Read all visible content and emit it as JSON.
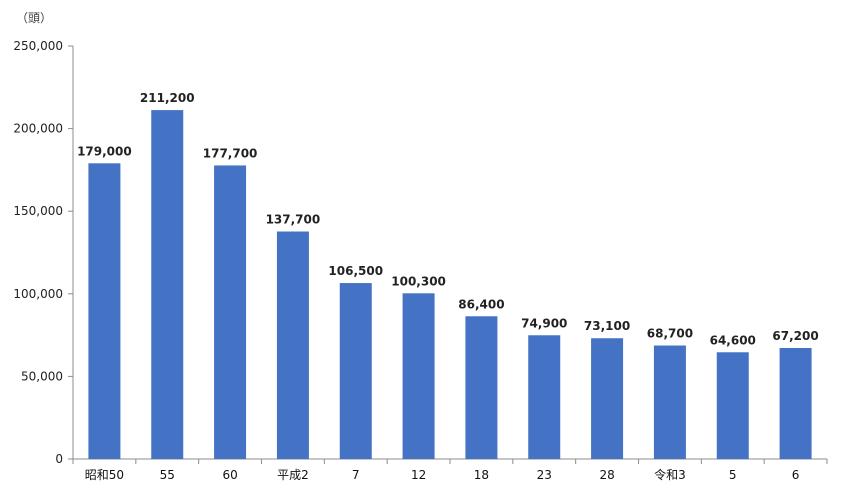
{
  "chart_data": {
    "type": "bar",
    "unit_label": "（頭）",
    "categories": [
      "昭和50",
      "55",
      "60",
      "平成2",
      "7",
      "12",
      "18",
      "23",
      "28",
      "令和3",
      "5",
      "6"
    ],
    "values": [
      179000,
      211200,
      177700,
      137700,
      106500,
      100300,
      86400,
      74900,
      73100,
      68700,
      64600,
      67200
    ],
    "data_labels": [
      "179,000",
      "211,200",
      "177,700",
      "137,700",
      "106,500",
      "100,300",
      "86,400",
      "74,900",
      "73,100",
      "68,700",
      "64,600",
      "67,200"
    ],
    "yticks": [
      0,
      50000,
      100000,
      150000,
      200000,
      250000
    ],
    "ytick_labels": [
      "0",
      "50,000",
      "100,000",
      "150,000",
      "200,000",
      "250,000"
    ],
    "ylim": [
      0,
      250000
    ],
    "grid": false,
    "legend": "none",
    "bar_color": "#4472C4"
  }
}
